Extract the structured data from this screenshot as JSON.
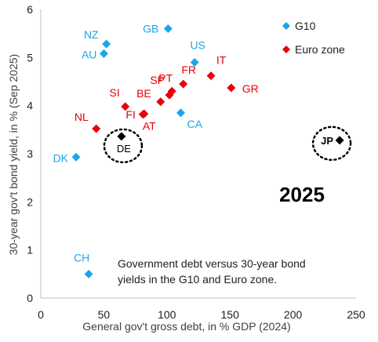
{
  "chart_data": {
    "type": "scatter",
    "xlabel": "General gov't gross debt, in % GDP (2024)",
    "ylabel": "30-year gov't bond yield, in % (Sep 2025)",
    "xlim": [
      0,
      250
    ],
    "ylim": [
      0,
      6
    ],
    "xticks": [
      "0",
      "50",
      "100",
      "150",
      "200",
      "250"
    ],
    "yticks": [
      "0",
      "1",
      "2",
      "3",
      "4",
      "5",
      "6"
    ],
    "grid": false,
    "legend_position": "top-right",
    "year_label": "2025",
    "annotation": "Government debt versus 30-year bond yields in the G10 and Euro zone.",
    "colors": {
      "g10": "#1aa7e8",
      "euro": "#e8000b",
      "highlight": "#000000"
    },
    "series": [
      {
        "name": "G10",
        "points": [
          {
            "label": "GB",
            "x": 101,
            "y": 5.6
          },
          {
            "label": "NZ",
            "x": 52,
            "y": 5.28
          },
          {
            "label": "AU",
            "x": 50,
            "y": 5.08
          },
          {
            "label": "US",
            "x": 122,
            "y": 4.9
          },
          {
            "label": "CA",
            "x": 111,
            "y": 3.85
          },
          {
            "label": "DK",
            "x": 28,
            "y": 2.93
          },
          {
            "label": "CH",
            "x": 38,
            "y": 0.5
          }
        ]
      },
      {
        "name": "Euro zone",
        "points": [
          {
            "label": "IT",
            "x": 135,
            "y": 4.62
          },
          {
            "label": "FR",
            "x": 113,
            "y": 4.45
          },
          {
            "label": "PT",
            "x": 104,
            "y": 4.3
          },
          {
            "label": "SP",
            "x": 102,
            "y": 4.22
          },
          {
            "label": "BE",
            "x": 95,
            "y": 4.08
          },
          {
            "label": "GR",
            "x": 151,
            "y": 4.37
          },
          {
            "label": "SI",
            "x": 67,
            "y": 3.98
          },
          {
            "label": "FI",
            "x": 82,
            "y": 3.83
          },
          {
            "label": "AT",
            "x": 81,
            "y": 3.82
          },
          {
            "label": "NL",
            "x": 44,
            "y": 3.52
          }
        ]
      },
      {
        "points": [
          {
            "label": "DE",
            "x": 64,
            "y": 3.36
          },
          {
            "label": "JP",
            "x": 237,
            "y": 3.28
          }
        ]
      }
    ]
  }
}
